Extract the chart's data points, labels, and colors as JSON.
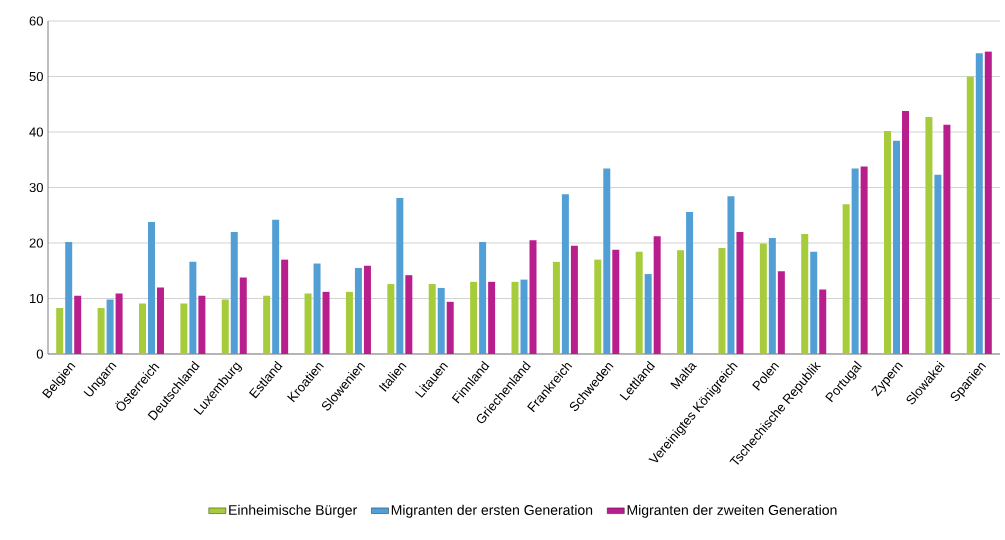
{
  "chart_data": {
    "type": "bar",
    "categories": [
      "Belgien",
      "Ungarn",
      "Österreich",
      "Deutschland",
      "Luxemburg",
      "Estland",
      "Kroatien",
      "Slowenien",
      "Italien",
      "Litauen",
      "Finnland",
      "Griechenland",
      "Frankreich",
      "Schweden",
      "Lettland",
      "Malta",
      "Vereinigtes Königreich",
      "Polen",
      "Tschechische Republik",
      "Portugal",
      "Zypern",
      "Slowakei",
      "Spanien"
    ],
    "series": [
      {
        "name": "Einheimische Bürger",
        "color": "#a6cb3b",
        "values": [
          8.3,
          8.3,
          9.1,
          9.1,
          9.8,
          10.5,
          10.9,
          11.2,
          12.6,
          12.6,
          13,
          13,
          16.6,
          17,
          18.4,
          18.7,
          19.1,
          19.9,
          21.6,
          27,
          40.2,
          42.7,
          50
        ]
      },
      {
        "name": "Migranten der ersten Generation",
        "color": "#529fd6",
        "values": [
          20.2,
          9.8,
          23.8,
          16.6,
          22,
          24.2,
          16.3,
          15.5,
          28.1,
          11.9,
          20.2,
          13.4,
          28.8,
          33.4,
          14.4,
          25.6,
          28.4,
          20.9,
          18.4,
          33.4,
          38.4,
          32.3,
          54.2
        ]
      },
      {
        "name": "Migranten der zweiten Generation",
        "color": "#b91f8c",
        "values": [
          10.5,
          10.9,
          12,
          10.5,
          13.8,
          17,
          11.2,
          15.9,
          14.2,
          9.4,
          13,
          20.5,
          19.5,
          18.8,
          21.2,
          null,
          22,
          14.9,
          11.6,
          33.8,
          43.8,
          41.3,
          54.5
        ]
      }
    ],
    "ylim": [
      0,
      60
    ],
    "yticks": [
      0,
      10,
      20,
      30,
      40,
      50,
      60
    ],
    "grid": "y",
    "legend": "bottom"
  }
}
